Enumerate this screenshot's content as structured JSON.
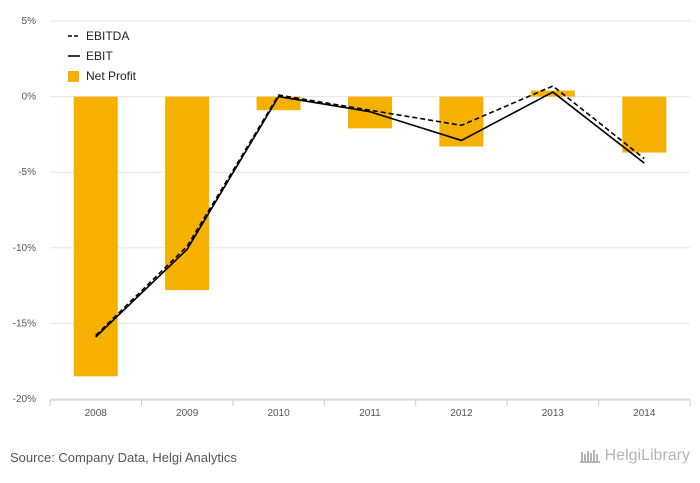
{
  "chart_data": {
    "type": "bar",
    "categories": [
      "2008",
      "2009",
      "2010",
      "2011",
      "2012",
      "2013",
      "2014"
    ],
    "y_ticks": [
      "5%",
      "0%",
      "-5%",
      "-10%",
      "-15%",
      "-20%"
    ],
    "y_tick_values": [
      5,
      0,
      -5,
      -10,
      -15,
      -20
    ],
    "ylim": [
      -20,
      5
    ],
    "grid": true,
    "legend_position": "top-left",
    "series": [
      {
        "name": "EBITDA",
        "kind": "line",
        "style": "dashed",
        "color": "#000000",
        "values": [
          -15.8,
          -9.9,
          0.1,
          -0.9,
          -1.9,
          0.7,
          -4.1
        ]
      },
      {
        "name": "EBIT",
        "kind": "line",
        "style": "solid",
        "color": "#000000",
        "values": [
          -15.9,
          -10.1,
          0.0,
          -1.0,
          -2.9,
          0.3,
          -4.4
        ]
      },
      {
        "name": "Net Profit",
        "kind": "bar",
        "color": "#f5b000",
        "values": [
          -18.5,
          -12.8,
          -0.9,
          -2.1,
          -3.3,
          0.4,
          -3.7
        ]
      }
    ]
  },
  "footer": {
    "source": "Source: Company Data, Helgi Analytics",
    "brand": "HelgiLibrary"
  }
}
